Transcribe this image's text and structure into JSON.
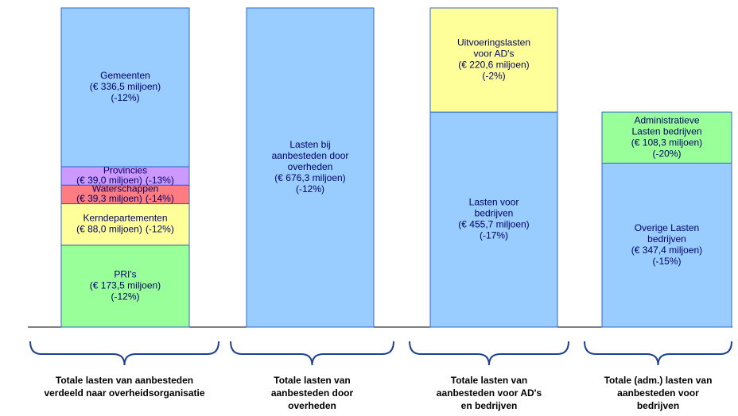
{
  "chart_data": {
    "type": "stacked_bar",
    "columns": [
      {
        "label_lines": [
          "Totale lasten van aanbesteden",
          "verdeeld naar overheidsorganisatie"
        ],
        "segments": [
          {
            "name_lines": [
              "PRI's"
            ],
            "value": 173.5,
            "value_label": "(€ 173,5 miljoen)",
            "change": "(-12%)",
            "color": "#99ff99"
          },
          {
            "name_lines": [
              "Kerndepartementen"
            ],
            "value": 88.0,
            "value_label": "(€ 88,0 miljoen)",
            "change": "(-12%)",
            "color": "#ffff99"
          },
          {
            "name_lines": [
              "Waterschappen"
            ],
            "value": 39.3,
            "value_label": "(€ 39,3 miljoen)",
            "change": "(-14%)",
            "color": "#ff7c80"
          },
          {
            "name_lines": [
              "Provincies"
            ],
            "value": 39.0,
            "value_label": "(€ 39,0 miljoen)",
            "change": "(-13%)",
            "color": "#cc99ff"
          },
          {
            "name_lines": [
              "Gemeenten"
            ],
            "value": 336.5,
            "value_label": "(€ 336,5 miljoen)",
            "change": "(-12%)",
            "color": "#99ccff"
          }
        ]
      },
      {
        "label_lines": [
          "Totale lasten van",
          "aanbesteden door",
          "overheden"
        ],
        "segments": [
          {
            "name_lines": [
              "Lasten bij",
              "aanbesteden door",
              "overheden"
            ],
            "value": 676.3,
            "value_label": "(€ 676,3 miljoen)",
            "change": "(-12%)",
            "color": "#99ccff"
          }
        ]
      },
      {
        "label_lines": [
          "Totale lasten van",
          "aanbesteden voor AD's",
          "en bedrijven"
        ],
        "segments": [
          {
            "name_lines": [
              "Lasten voor",
              "bedrijven"
            ],
            "value": 455.7,
            "value_label": "(€ 455,7 miljoen)",
            "change": "(-17%)",
            "color": "#99ccff"
          },
          {
            "name_lines": [
              "Uitvoeringslasten",
              "voor AD's"
            ],
            "value": 220.6,
            "value_label": "(€ 220,6 miljoen)",
            "change": "(-2%)",
            "color": "#ffff99"
          }
        ]
      },
      {
        "label_lines": [
          "Totale (adm.) lasten van",
          "aanbesteden voor",
          "bedrijven"
        ],
        "segments": [
          {
            "name_lines": [
              "Overige Lasten",
              "bedrijven"
            ],
            "value": 347.4,
            "value_label": "(€ 347,4 miljoen)",
            "change": "(-15%)",
            "color": "#99ccff"
          },
          {
            "name_lines": [
              "Administratieve",
              "Lasten bedrijven"
            ],
            "value": 108.3,
            "value_label": "(€ 108,3 miljoen)",
            "change": "(-20%)",
            "color": "#99ff99"
          }
        ]
      }
    ]
  }
}
